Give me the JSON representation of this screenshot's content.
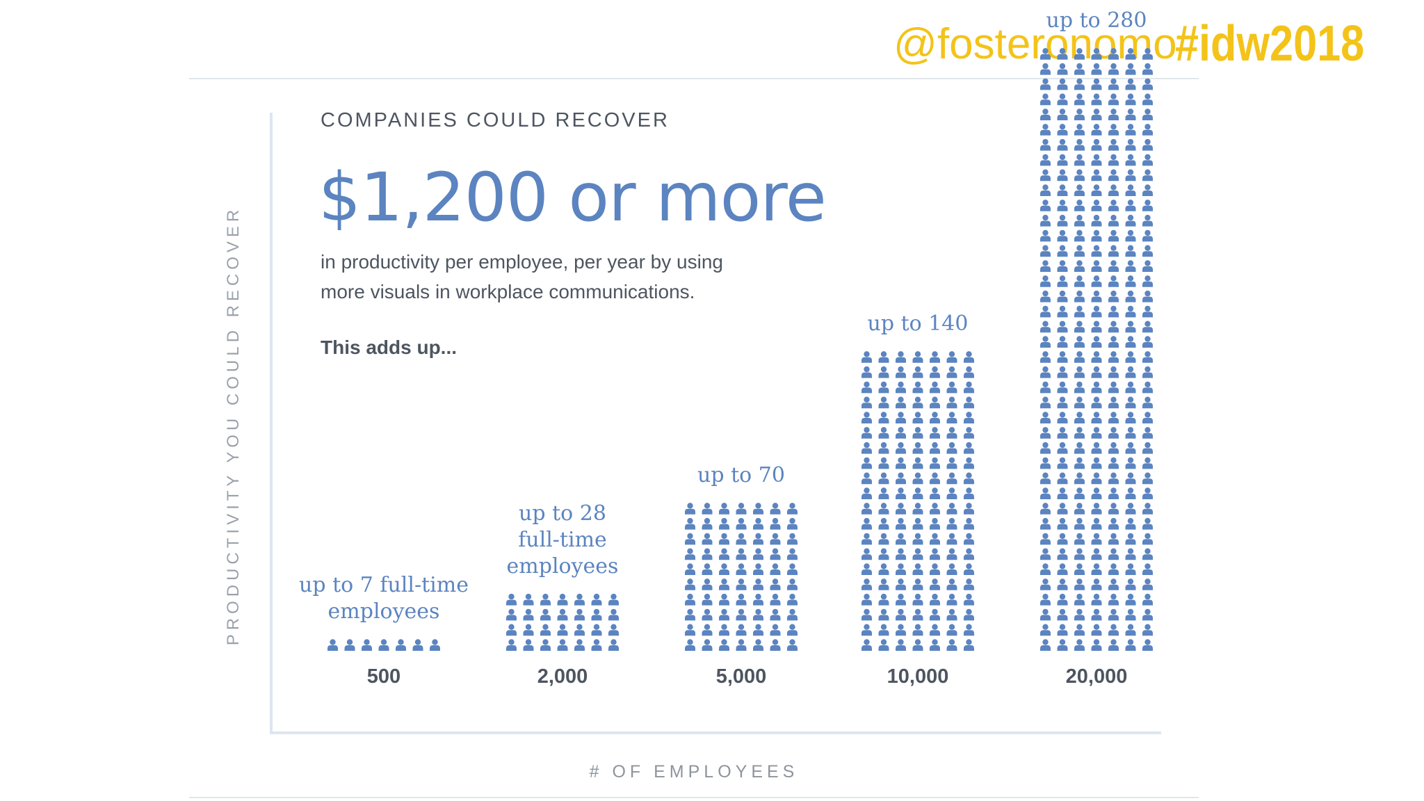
{
  "header": {
    "handle": "@fosteronomo",
    "hashtag": "#idw2018"
  },
  "intro": {
    "kicker": "COMPANIES COULD RECOVER",
    "headline": "$1,200 or more",
    "subtext_line1": "in productivity per employee, per year by using",
    "subtext_line2": "more visuals in workplace communications.",
    "adds_up": "This adds up..."
  },
  "colors": {
    "accent": "#5b84c0",
    "icon": "#5b84c0",
    "text": "#4d5560",
    "header_accent": "#f3c319"
  },
  "chart_data": {
    "type": "bar",
    "xlabel": "# OF EMPLOYEES",
    "ylabel": "PRODUCTIVITY YOU COULD RECOVER",
    "categories": [
      "500",
      "2,000",
      "5,000",
      "10,000",
      "20,000"
    ],
    "values": [
      7,
      28,
      70,
      140,
      280
    ],
    "bar_labels": [
      [
        "up to 7 full-time",
        "employees"
      ],
      [
        "up to 28",
        "full-time",
        "employees"
      ],
      [
        "up to 70"
      ],
      [
        "up to 140"
      ],
      [
        "up to 280"
      ]
    ],
    "icon": "person-icon",
    "icons_per_row": 7
  }
}
